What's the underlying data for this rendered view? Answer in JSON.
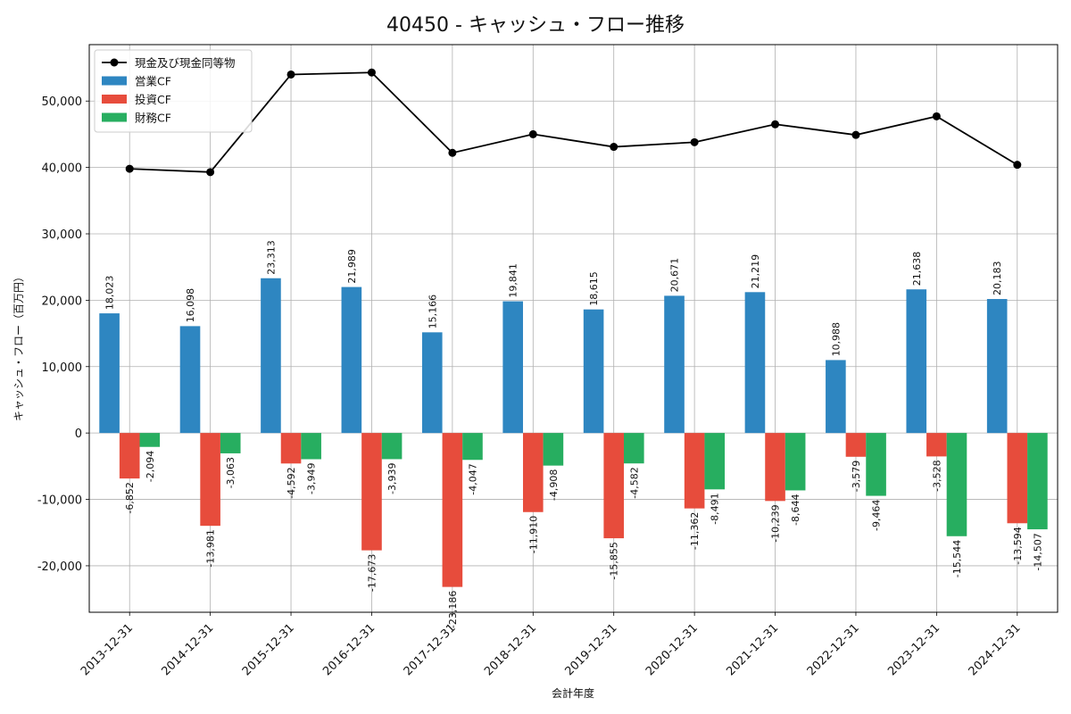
{
  "chart_data": {
    "type": "bar",
    "title": "40450 - キャッシュ・フロー推移",
    "xlabel": "会計年度",
    "ylabel": "キャッシュ・フロー（百万円）",
    "ylim": [
      -27000,
      58500
    ],
    "yticks": [
      -20000,
      -10000,
      0,
      10000,
      20000,
      30000,
      40000,
      50000
    ],
    "ytick_labels": [
      "-20,000",
      "-10,000",
      "0",
      "10,000",
      "20,000",
      "30,000",
      "40,000",
      "50,000"
    ],
    "grid": true,
    "legend_position": "top-left",
    "categories": [
      "2013-12-31",
      "2014-12-31",
      "2015-12-31",
      "2016-12-31",
      "2017-12-31",
      "2018-12-31",
      "2019-12-31",
      "2020-12-31",
      "2021-12-31",
      "2022-12-31",
      "2023-12-31",
      "2024-12-31"
    ],
    "series": [
      {
        "name": "営業CF",
        "kind": "bar",
        "color": "#2e86c1",
        "values": [
          18023,
          16098,
          23313,
          21989,
          15166,
          19841,
          18615,
          20671,
          21219,
          10988,
          21638,
          20183
        ],
        "labels": [
          "18,023",
          "16,098",
          "23,313",
          "21,989",
          "15,166",
          "19,841",
          "18,615",
          "20,671",
          "21,219",
          "10,988",
          "21,638",
          "20,183"
        ]
      },
      {
        "name": "投資CF",
        "kind": "bar",
        "color": "#e74c3c",
        "values": [
          -6852,
          -13981,
          -4592,
          -17673,
          -23186,
          -11910,
          -15855,
          -11362,
          -10239,
          -3579,
          -3528,
          -13594
        ],
        "labels": [
          "-6,852",
          "-13,981",
          "-4,592",
          "-17,673",
          "-23,186",
          "-11,910",
          "-15,855",
          "-11,362",
          "-10,239",
          "-3,579",
          "-3,528",
          "-13,594"
        ]
      },
      {
        "name": "財務CF",
        "kind": "bar",
        "color": "#27ae60",
        "values": [
          -2094,
          -3063,
          -3949,
          -3939,
          -4047,
          -4908,
          -4582,
          -8491,
          -8644,
          -9464,
          -15544,
          -14507
        ],
        "labels": [
          "-2,094",
          "-3,063",
          "-3,949",
          "-3,939",
          "-4,047",
          "-4,908",
          "-4,582",
          "-8,491",
          "-8,644",
          "-9,464",
          "-15,544",
          "-14,507"
        ]
      },
      {
        "name": "現金及び現金同等物",
        "kind": "line",
        "color": "#000000",
        "values": [
          39800,
          39300,
          54000,
          54300,
          42200,
          45000,
          43100,
          43800,
          46500,
          44900,
          47700,
          40400
        ]
      }
    ]
  }
}
